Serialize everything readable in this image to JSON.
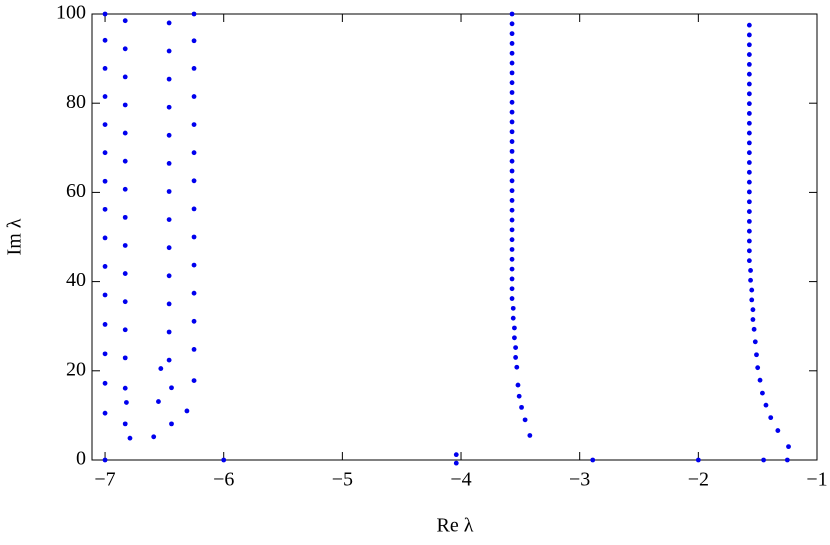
{
  "chart_data": {
    "type": "scatter",
    "x_label": "Re λ",
    "y_label": "Im λ",
    "color": "#0000ee",
    "xlim": [
      -7.11,
      -1
    ],
    "ylim": [
      0,
      100
    ],
    "xticks": [
      {
        "value": -7,
        "label": "−7"
      },
      {
        "value": -6,
        "label": "−6"
      },
      {
        "value": -5,
        "label": "−5"
      },
      {
        "value": -4,
        "label": "−4"
      },
      {
        "value": -3,
        "label": "−3"
      },
      {
        "value": -2,
        "label": "−2"
      },
      {
        "value": -1,
        "label": "−1"
      }
    ],
    "yticks": [
      0,
      20,
      40,
      60,
      80,
      100
    ],
    "x": [
      -7,
      -7,
      -7,
      -7,
      -7,
      -7,
      -7,
      -7,
      -7,
      -7,
      -7,
      -7,
      -7,
      -7,
      -7,
      -7,
      -6.83,
      -6.83,
      -6.83,
      -6.83,
      -6.83,
      -6.83,
      -6.83,
      -6.83,
      -6.83,
      -6.83,
      -6.83,
      -6.83,
      -6.83,
      -6.83,
      -6.82,
      -6.83,
      -6.79,
      -6.46,
      -6.46,
      -6.46,
      -6.46,
      -6.46,
      -6.46,
      -6.46,
      -6.46,
      -6.46,
      -6.46,
      -6.46,
      -6.46,
      -6.46,
      -6.44,
      -6.53,
      -6.55,
      -6.44,
      -6.59,
      -6.25,
      -6.25,
      -6.25,
      -6.25,
      -6.25,
      -6.25,
      -6.25,
      -6.25,
      -6.25,
      -6.25,
      -6.25,
      -6.25,
      -6.25,
      -6.25,
      -6.31,
      -6.0,
      -4.04,
      -4.04,
      -2.89,
      -2.0,
      -1.45,
      -1.25,
      -3.57,
      -3.57,
      -3.57,
      -3.57,
      -3.57,
      -3.57,
      -3.57,
      -3.57,
      -3.57,
      -3.57,
      -3.57,
      -3.57,
      -3.57,
      -3.57,
      -3.57,
      -3.57,
      -3.57,
      -3.57,
      -3.57,
      -3.57,
      -3.57,
      -3.57,
      -3.57,
      -3.57,
      -3.57,
      -3.57,
      -3.57,
      -3.57,
      -3.57,
      -3.57,
      -3.56,
      -3.56,
      -3.55,
      -3.55,
      -3.54,
      -3.54,
      -3.53,
      -3.52,
      -3.51,
      -3.49,
      -3.46,
      -3.42,
      -1.57,
      -1.57,
      -1.57,
      -1.57,
      -1.57,
      -1.57,
      -1.57,
      -1.57,
      -1.57,
      -1.57,
      -1.57,
      -1.57,
      -1.57,
      -1.57,
      -1.57,
      -1.57,
      -1.57,
      -1.57,
      -1.57,
      -1.57,
      -1.57,
      -1.57,
      -1.57,
      -1.57,
      -1.57,
      -1.56,
      -1.56,
      -1.55,
      -1.55,
      -1.54,
      -1.54,
      -1.53,
      -1.52,
      -1.51,
      -1.5,
      -1.48,
      -1.46,
      -1.43,
      -1.39,
      -1.33,
      -1.24
    ],
    "values": [
      0,
      10.5,
      17.2,
      23.8,
      30.4,
      37.0,
      43.4,
      49.8,
      56.2,
      62.5,
      68.9,
      75.2,
      81.5,
      87.8,
      94.1,
      100,
      98.5,
      92.2,
      85.9,
      79.6,
      73.3,
      67.0,
      60.7,
      54.4,
      48.1,
      41.8,
      35.5,
      29.2,
      22.9,
      16.1,
      12.9,
      8.1,
      4.9,
      98.0,
      91.7,
      85.4,
      79.1,
      72.8,
      66.5,
      60.2,
      53.9,
      47.6,
      41.3,
      35.0,
      28.7,
      22.4,
      16.2,
      20.5,
      13.1,
      8.1,
      5.2,
      100,
      94.0,
      87.8,
      81.5,
      75.2,
      68.9,
      62.6,
      56.3,
      50.0,
      43.7,
      37.4,
      31.1,
      24.8,
      17.8,
      11.0,
      0,
      1.2,
      -0.7,
      0,
      0,
      0,
      0,
      100,
      97.8,
      95.6,
      93.4,
      91.2,
      89.0,
      86.8,
      84.6,
      82.4,
      80.2,
      78.0,
      75.8,
      73.6,
      71.4,
      69.2,
      67.0,
      64.8,
      62.6,
      60.4,
      58.2,
      56.0,
      53.8,
      51.6,
      49.4,
      47.2,
      45.0,
      42.8,
      40.6,
      38.4,
      36.2,
      34.0,
      31.8,
      29.6,
      27.4,
      25.2,
      23.0,
      20.8,
      16.8,
      14.3,
      11.8,
      9.0,
      5.5,
      97.5,
      95.3,
      93.1,
      90.9,
      88.7,
      86.5,
      84.3,
      82.1,
      79.9,
      77.7,
      75.5,
      73.3,
      71.1,
      68.9,
      66.7,
      64.5,
      62.3,
      60.1,
      57.9,
      55.7,
      53.5,
      51.3,
      49.1,
      46.9,
      44.7,
      42.5,
      40.3,
      38.1,
      35.9,
      33.7,
      31.5,
      29.3,
      26.5,
      23.6,
      20.7,
      17.9,
      15.0,
      12.3,
      9.5,
      6.6,
      3.0
    ]
  }
}
